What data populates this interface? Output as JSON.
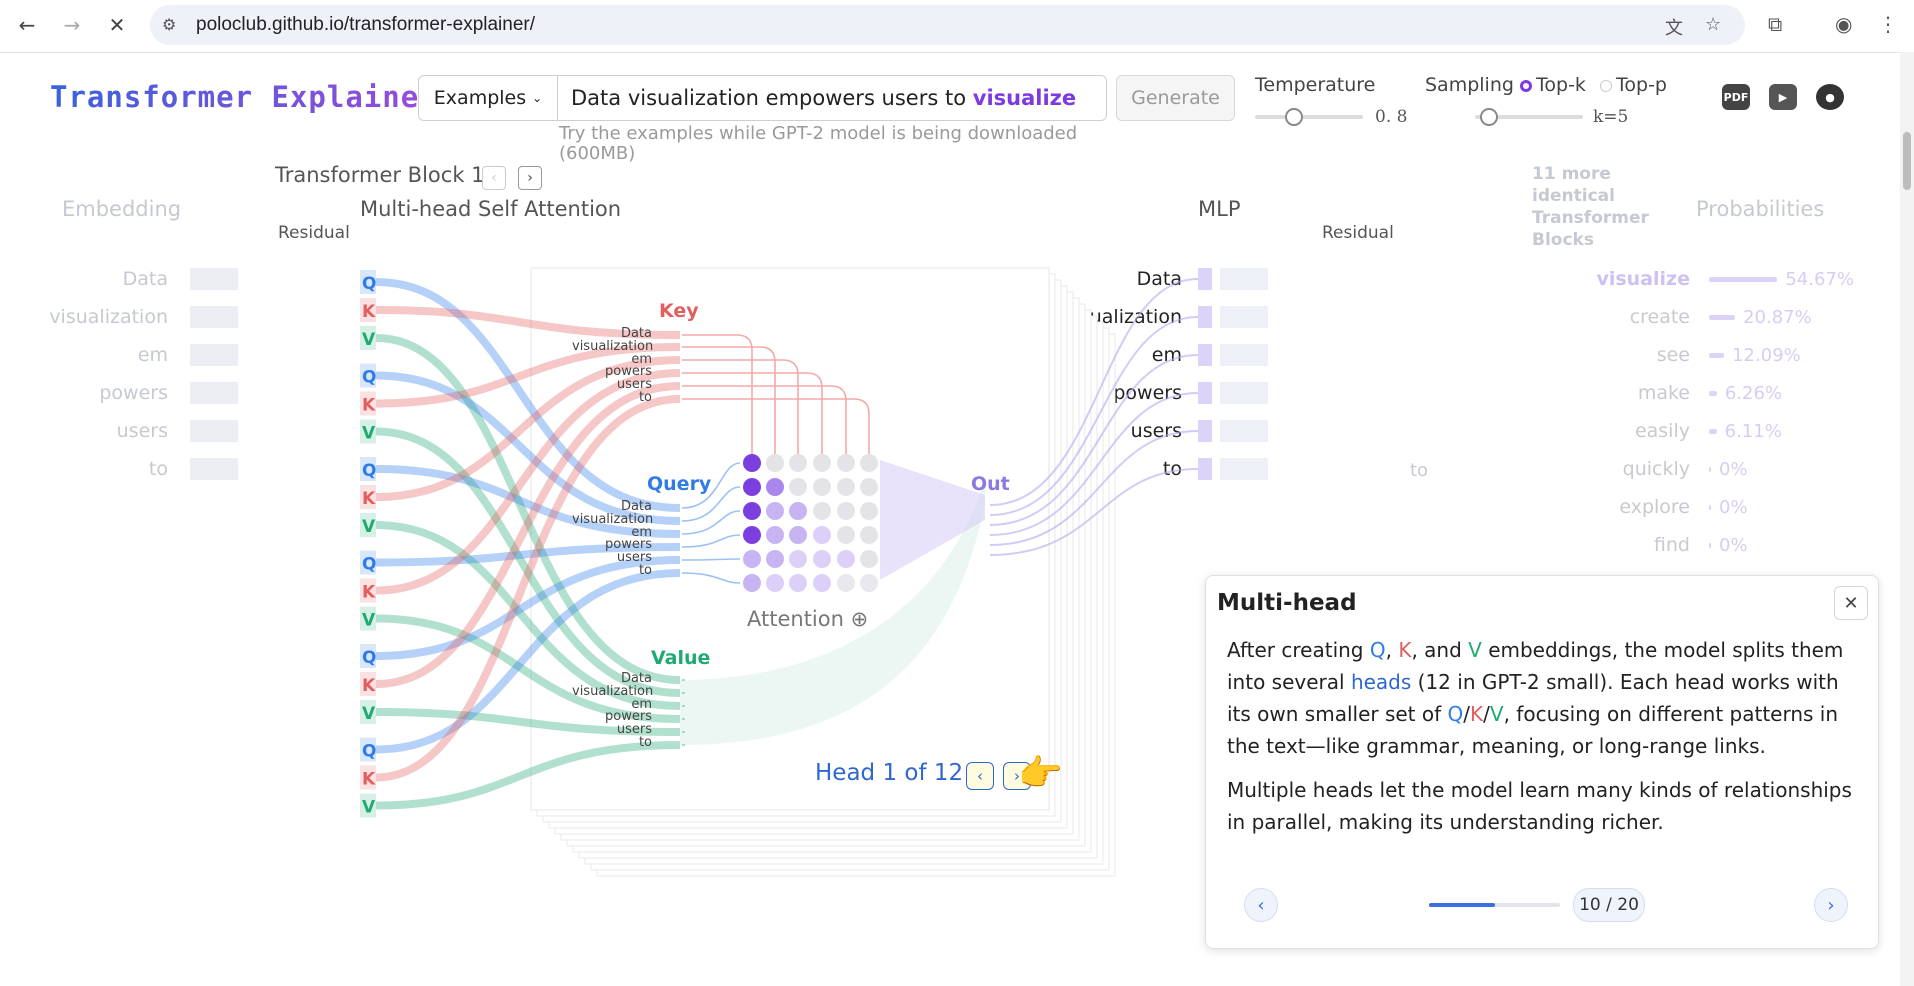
{
  "browser": {
    "url": "poloclub.github.io/transformer-explainer/"
  },
  "app": {
    "logo": "Transformer Explainer",
    "examples_label": "Examples",
    "prompt": "Data visualization empowers users to",
    "predicted_word": "visualize",
    "generate_label": "Generate",
    "hint": "Try the examples while GPT-2 model is being downloaded (600MB)",
    "temperature_label": "Temperature",
    "temperature_value": "0. 8",
    "temperature_level": 0.4,
    "sampling_label": "Sampling",
    "sampling_options": [
      "Top-k",
      "Top-p"
    ],
    "sampling_selected": "Top-k",
    "topk_value": "k=5"
  },
  "stage": {
    "block_label": "Transformer Block 1",
    "embedding_title": "Embedding",
    "residual_label": "Residual",
    "attention_title": "Multi-head Self Attention",
    "mlp_title": "MLP",
    "residual_label_2": "Residual",
    "more_blocks_count": "11",
    "more_blocks_text": "more identical Transformer Blocks",
    "probabilities_title": "Probabilities",
    "tokens": [
      "Data",
      "visualization",
      "em",
      "powers",
      "users",
      "to"
    ],
    "qkv": [
      "Q",
      "K",
      "V"
    ],
    "key_label": "Key",
    "query_label": "Query",
    "value_label": "Value",
    "out_label": "Out",
    "attention_label": "Attention",
    "residual_token": "to",
    "head_label": "Head 1 of 12",
    "probabilities": [
      {
        "word": "visualize",
        "pct": "54.67%",
        "value": 54.67
      },
      {
        "word": "create",
        "pct": "20.87%",
        "value": 20.87
      },
      {
        "word": "see",
        "pct": "12.09%",
        "value": 12.09
      },
      {
        "word": "make",
        "pct": "6.26%",
        "value": 6.26
      },
      {
        "word": "easily",
        "pct": "6.11%",
        "value": 6.11
      },
      {
        "word": "quickly",
        "pct": "0%",
        "value": 0
      },
      {
        "word": "explore",
        "pct": "0%",
        "value": 0
      },
      {
        "word": "find",
        "pct": "0%",
        "value": 0
      }
    ]
  },
  "card": {
    "title": "Multi-head",
    "p1_a": "After creating ",
    "p1_q": "Q",
    "p1_sep1": ", ",
    "p1_k": "K",
    "p1_sep2": ", and ",
    "p1_v": "V",
    "p1_b": " embeddings, the model splits them into several ",
    "p1_heads": "heads",
    "p1_c": " (12 in GPT-2 small). Each head works with its own smaller set of ",
    "p1_q2": "Q",
    "p1_slash1": "/",
    "p1_k2": "K",
    "p1_slash2": "/",
    "p1_v2": "V",
    "p1_d": ", focusing on different patterns in the text—like grammar, meaning, or long-range links.",
    "p2": "Multiple heads let the model learn many kinds of relationships in parallel, making its understanding richer.",
    "progress_text": "10 / 20",
    "progress_fraction": 0.5
  },
  "colors": {
    "query": "#2f7be8",
    "key": "#e35e5e",
    "value": "#1faa72",
    "accent": "#7c3ae0"
  }
}
